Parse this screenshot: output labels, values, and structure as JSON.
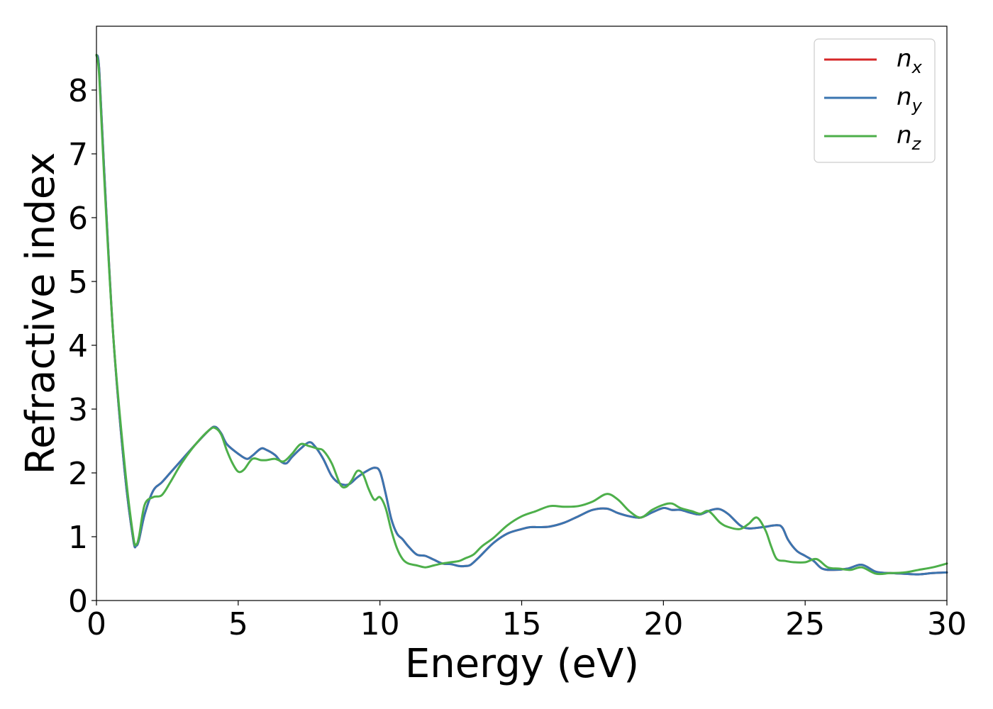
{
  "chart_data": {
    "type": "line",
    "xlabel": "Energy (eV)",
    "ylabel": "Refractive index",
    "xlim": [
      0,
      30
    ],
    "ylim": [
      0,
      9
    ],
    "xticks": [
      0,
      5,
      10,
      15,
      20,
      25,
      30
    ],
    "yticks": [
      0,
      1,
      2,
      3,
      4,
      5,
      6,
      7,
      8
    ],
    "grid": false,
    "legend_position": "top-right",
    "series": [
      {
        "name": "n_x",
        "label_base": "n",
        "label_sub": "x",
        "color": "#d62728",
        "x": [
          0,
          0.1,
          0.3,
          0.6,
          1.0,
          1.3,
          1.4,
          1.5,
          1.7,
          2.0,
          2.3,
          2.6,
          3.0,
          3.5,
          4.0,
          4.2,
          4.4,
          4.6,
          5.0,
          5.3,
          5.5,
          5.8,
          6.0,
          6.3,
          6.5,
          6.7,
          6.9,
          7.2,
          7.5,
          7.7,
          8.0,
          8.3,
          8.6,
          8.9,
          9.2,
          9.5,
          9.8,
          10.0,
          10.2,
          10.4,
          10.6,
          10.8,
          11.0,
          11.3,
          11.6,
          11.9,
          12.2,
          12.5,
          12.8,
          13.0,
          13.2,
          13.5,
          14.0,
          14.5,
          15.0,
          15.3,
          15.6,
          16.0,
          16.5,
          17.0,
          17.5,
          18.0,
          18.4,
          18.8,
          19.2,
          19.6,
          20.0,
          20.3,
          20.6,
          21.0,
          21.3,
          21.7,
          22.0,
          22.3,
          22.7,
          23.0,
          23.5,
          24.0,
          24.2,
          24.4,
          24.7,
          25.0,
          25.3,
          25.6,
          26.0,
          26.5,
          27.0,
          27.5,
          28.0,
          28.5,
          29.0,
          29.5,
          30.0
        ],
        "values": [
          8.55,
          8.3,
          6.5,
          4.1,
          2.0,
          0.95,
          0.86,
          0.95,
          1.35,
          1.72,
          1.85,
          2.0,
          2.2,
          2.45,
          2.68,
          2.72,
          2.62,
          2.45,
          2.3,
          2.22,
          2.27,
          2.38,
          2.36,
          2.28,
          2.18,
          2.15,
          2.25,
          2.38,
          2.48,
          2.42,
          2.22,
          1.95,
          1.83,
          1.82,
          1.93,
          2.02,
          2.08,
          2.02,
          1.68,
          1.28,
          1.05,
          0.96,
          0.85,
          0.72,
          0.7,
          0.64,
          0.58,
          0.57,
          0.54,
          0.54,
          0.56,
          0.68,
          0.9,
          1.05,
          1.12,
          1.15,
          1.15,
          1.16,
          1.22,
          1.32,
          1.42,
          1.44,
          1.37,
          1.32,
          1.3,
          1.38,
          1.45,
          1.42,
          1.42,
          1.37,
          1.35,
          1.42,
          1.43,
          1.35,
          1.18,
          1.13,
          1.15,
          1.18,
          1.14,
          0.95,
          0.78,
          0.7,
          0.62,
          0.5,
          0.48,
          0.5,
          0.56,
          0.45,
          0.43,
          0.42,
          0.41,
          0.43,
          0.44
        ]
      },
      {
        "name": "n_y",
        "label_base": "n",
        "label_sub": "y",
        "color": "#3a75b0",
        "x": [
          0,
          0.1,
          0.3,
          0.6,
          1.0,
          1.3,
          1.4,
          1.5,
          1.7,
          2.0,
          2.3,
          2.6,
          3.0,
          3.5,
          4.0,
          4.2,
          4.4,
          4.6,
          5.0,
          5.3,
          5.5,
          5.8,
          6.0,
          6.3,
          6.5,
          6.7,
          6.9,
          7.2,
          7.5,
          7.7,
          8.0,
          8.3,
          8.6,
          8.9,
          9.2,
          9.5,
          9.8,
          10.0,
          10.2,
          10.4,
          10.6,
          10.8,
          11.0,
          11.3,
          11.6,
          11.9,
          12.2,
          12.5,
          12.8,
          13.0,
          13.2,
          13.5,
          14.0,
          14.5,
          15.0,
          15.3,
          15.6,
          16.0,
          16.5,
          17.0,
          17.5,
          18.0,
          18.4,
          18.8,
          19.2,
          19.6,
          20.0,
          20.3,
          20.6,
          21.0,
          21.3,
          21.7,
          22.0,
          22.3,
          22.7,
          23.0,
          23.5,
          24.0,
          24.2,
          24.4,
          24.7,
          25.0,
          25.3,
          25.6,
          26.0,
          26.5,
          27.0,
          27.5,
          28.0,
          28.5,
          29.0,
          29.5,
          30.0
        ],
        "values": [
          8.55,
          8.3,
          6.5,
          4.1,
          2.0,
          0.95,
          0.86,
          0.95,
          1.35,
          1.72,
          1.85,
          2.0,
          2.2,
          2.45,
          2.68,
          2.72,
          2.62,
          2.45,
          2.3,
          2.22,
          2.27,
          2.38,
          2.36,
          2.28,
          2.18,
          2.15,
          2.25,
          2.38,
          2.48,
          2.42,
          2.22,
          1.95,
          1.83,
          1.82,
          1.93,
          2.02,
          2.08,
          2.02,
          1.68,
          1.28,
          1.05,
          0.96,
          0.85,
          0.72,
          0.7,
          0.64,
          0.58,
          0.57,
          0.54,
          0.54,
          0.56,
          0.68,
          0.9,
          1.05,
          1.12,
          1.15,
          1.15,
          1.16,
          1.22,
          1.32,
          1.42,
          1.44,
          1.37,
          1.32,
          1.3,
          1.38,
          1.45,
          1.42,
          1.42,
          1.37,
          1.35,
          1.42,
          1.43,
          1.35,
          1.18,
          1.13,
          1.15,
          1.18,
          1.14,
          0.95,
          0.78,
          0.7,
          0.62,
          0.5,
          0.48,
          0.5,
          0.56,
          0.45,
          0.43,
          0.42,
          0.41,
          0.43,
          0.44
        ]
      },
      {
        "name": "n_z",
        "label_base": "n",
        "label_sub": "z",
        "color": "#4daf4a",
        "x": [
          0,
          0.1,
          0.3,
          0.6,
          1.0,
          1.3,
          1.4,
          1.5,
          1.7,
          2.0,
          2.3,
          2.6,
          3.0,
          3.5,
          4.0,
          4.2,
          4.4,
          4.6,
          4.8,
          5.0,
          5.2,
          5.5,
          5.8,
          6.0,
          6.3,
          6.6,
          6.9,
          7.2,
          7.5,
          7.8,
          8.0,
          8.3,
          8.6,
          8.8,
          9.0,
          9.2,
          9.4,
          9.6,
          9.8,
          10.0,
          10.2,
          10.4,
          10.6,
          10.8,
          11.0,
          11.3,
          11.6,
          11.9,
          12.2,
          12.5,
          12.8,
          13.0,
          13.3,
          13.6,
          14.0,
          14.5,
          15.0,
          15.5,
          16.0,
          16.5,
          17.0,
          17.5,
          18.0,
          18.4,
          18.8,
          19.2,
          19.6,
          20.0,
          20.3,
          20.6,
          21.0,
          21.3,
          21.6,
          22.0,
          22.3,
          22.7,
          23.0,
          23.3,
          23.6,
          23.8,
          24.0,
          24.3,
          24.6,
          25.0,
          25.4,
          25.8,
          26.2,
          26.6,
          27.0,
          27.5,
          28.0,
          28.5,
          29.0,
          29.5,
          30.0
        ],
        "values": [
          8.55,
          8.2,
          6.4,
          4.1,
          2.1,
          1.0,
          0.88,
          1.0,
          1.5,
          1.62,
          1.65,
          1.85,
          2.15,
          2.45,
          2.68,
          2.7,
          2.6,
          2.35,
          2.15,
          2.02,
          2.05,
          2.22,
          2.2,
          2.2,
          2.22,
          2.18,
          2.3,
          2.45,
          2.42,
          2.38,
          2.35,
          2.15,
          1.82,
          1.78,
          1.88,
          2.03,
          1.98,
          1.75,
          1.58,
          1.62,
          1.45,
          1.1,
          0.82,
          0.65,
          0.58,
          0.55,
          0.52,
          0.55,
          0.58,
          0.6,
          0.62,
          0.66,
          0.72,
          0.85,
          0.98,
          1.18,
          1.32,
          1.4,
          1.48,
          1.47,
          1.48,
          1.55,
          1.67,
          1.58,
          1.4,
          1.3,
          1.42,
          1.5,
          1.52,
          1.45,
          1.4,
          1.36,
          1.4,
          1.22,
          1.15,
          1.12,
          1.2,
          1.3,
          1.1,
          0.85,
          0.65,
          0.62,
          0.6,
          0.6,
          0.65,
          0.52,
          0.5,
          0.48,
          0.52,
          0.42,
          0.43,
          0.44,
          0.48,
          0.52,
          0.58
        ]
      }
    ]
  }
}
